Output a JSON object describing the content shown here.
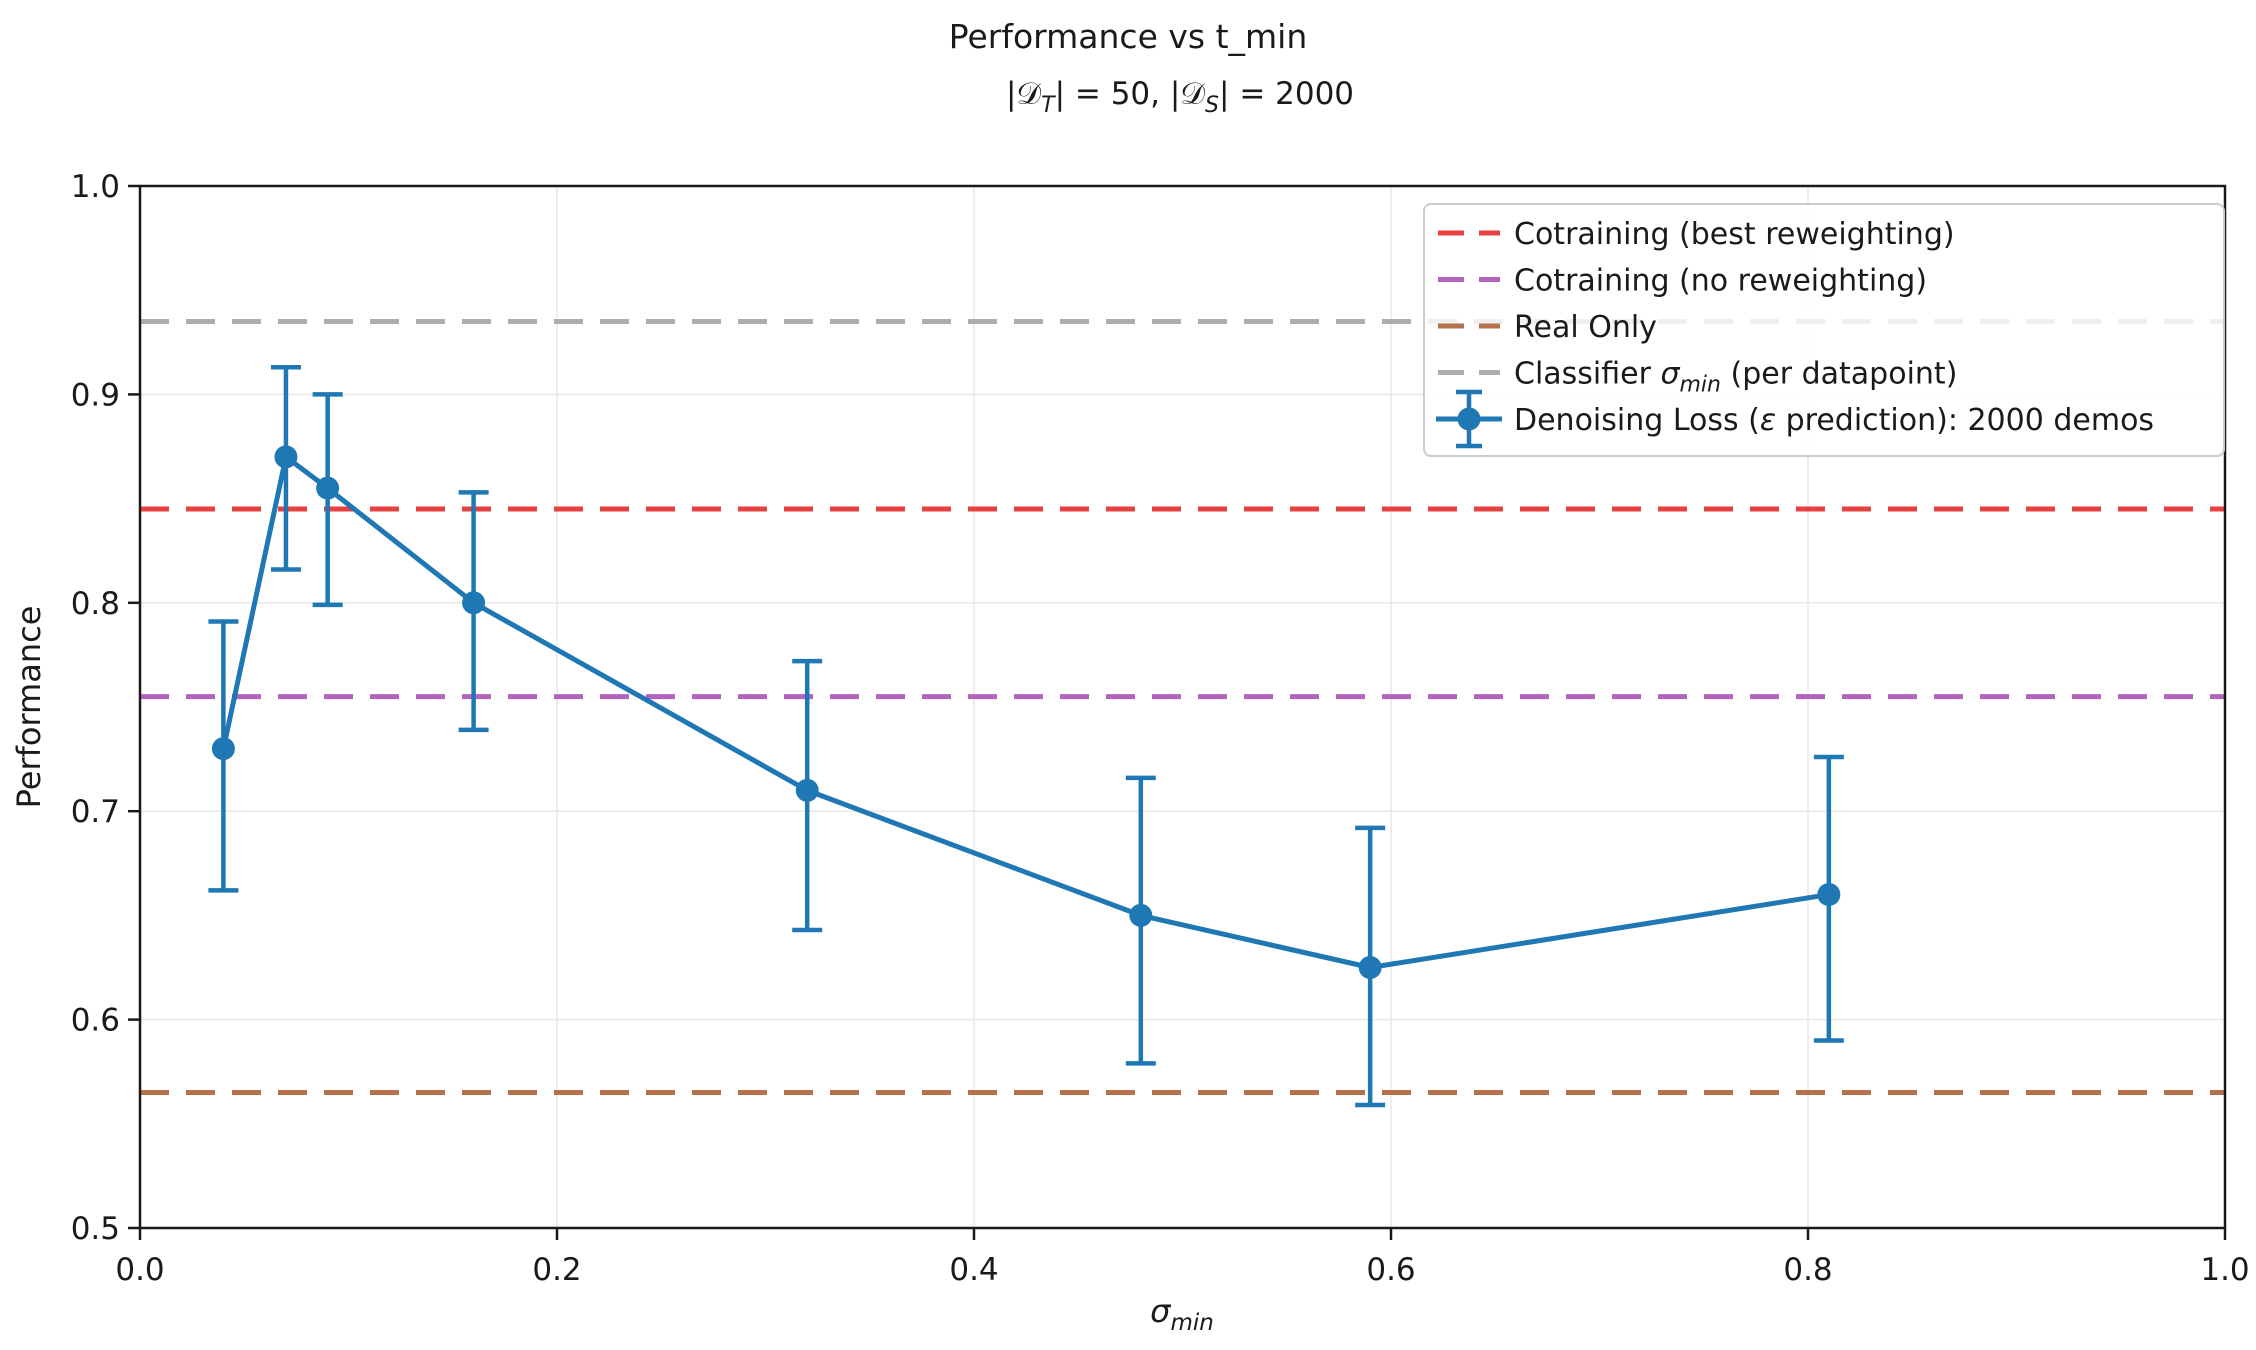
{
  "chart_data": {
    "type": "line",
    "title": "Performance vs t_min",
    "subtitle": {
      "s1": "|𝒟",
      "s1_sub": "T",
      "s2": "| = 50, |𝒟",
      "s2_sub": "S",
      "s3": "| = 2000"
    },
    "xlabel": {
      "base": "σ",
      "sub": "min"
    },
    "ylabel": "Performance",
    "xlim": [
      0.0,
      1.0
    ],
    "ylim": [
      0.5,
      1.0
    ],
    "xticks": [
      "0.0",
      "0.2",
      "0.4",
      "0.6",
      "0.8",
      "1.0"
    ],
    "yticks": [
      "0.5",
      "0.6",
      "0.7",
      "0.8",
      "0.9",
      "1.0"
    ],
    "grid": true,
    "legend_position": "upper right",
    "colors": {
      "cotrain_best": "#e74040",
      "cotrain_none": "#b264bd",
      "real_only": "#b5704c",
      "classifier": "#adadad",
      "denoising": "#1f77b4",
      "grid": "#e8e8e8",
      "spine": "#1a1a1a"
    },
    "hlines": [
      {
        "y": 0.845,
        "color": "#e74040",
        "style": "dashed",
        "label": {
          "pre": "Cotraining (best reweighting)"
        }
      },
      {
        "y": 0.755,
        "color": "#b264bd",
        "style": "dashed",
        "label": {
          "pre": "Cotraining (no reweighting)"
        }
      },
      {
        "y": 0.565,
        "color": "#b5704c",
        "style": "dashed",
        "label": {
          "pre": "Real Only"
        }
      },
      {
        "y": 0.935,
        "color": "#adadad",
        "style": "dashed",
        "label": {
          "pre": "Classifier ",
          "math": "σ",
          "sub": "min",
          "post": " (per datapoint)"
        }
      }
    ],
    "series": [
      {
        "name": {
          "pre": "Denoising Loss (",
          "math": "ε",
          "post": " prediction): 2000 demos"
        },
        "color": "#1f77b4",
        "marker": "circle",
        "x": [
          0.04,
          0.07,
          0.09,
          0.16,
          0.32,
          0.48,
          0.59,
          0.81
        ],
        "y": [
          0.73,
          0.87,
          0.855,
          0.8,
          0.71,
          0.65,
          0.625,
          0.66
        ],
        "err_hi": [
          0.791,
          0.913,
          0.9,
          0.853,
          0.772,
          0.716,
          0.692,
          0.726
        ],
        "err_lo": [
          0.662,
          0.816,
          0.799,
          0.739,
          0.643,
          0.579,
          0.559,
          0.59
        ]
      }
    ]
  }
}
